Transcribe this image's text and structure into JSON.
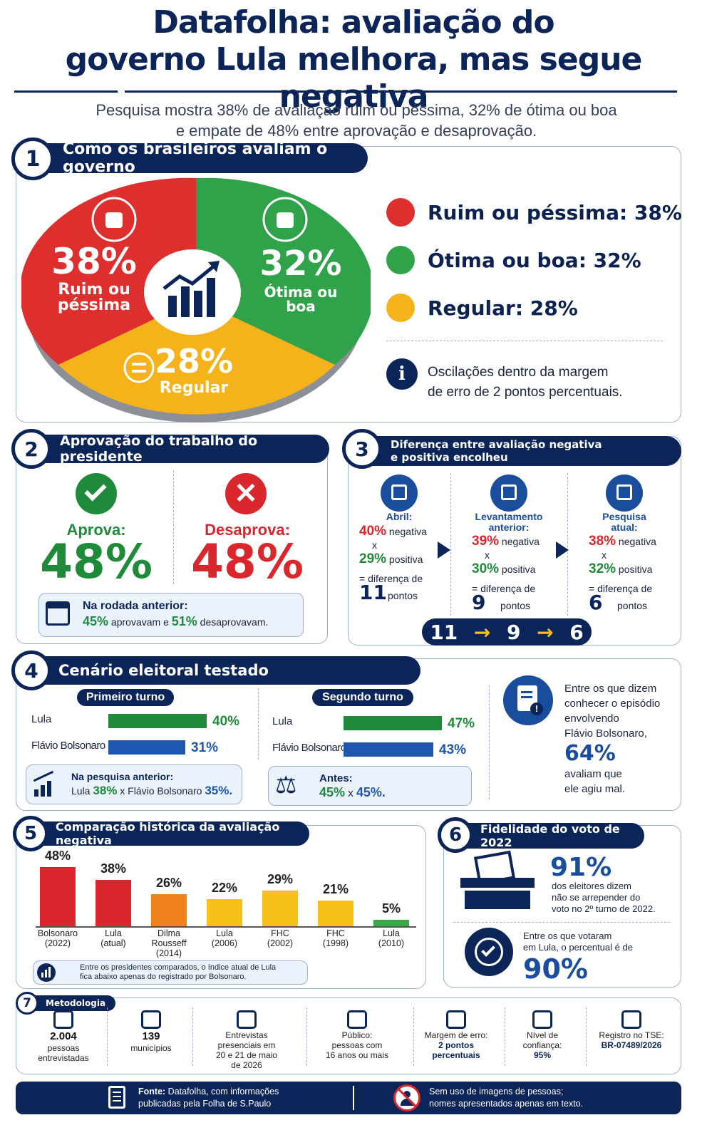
{
  "header": {
    "title_line1": "Datafolha: avaliação do",
    "title_line2": "governo Lula melhora, mas segue negativa",
    "subtitle_line1": "Pesquisa mostra 38% de avaliação ruim ou péssima, 32% de ótima ou boa",
    "subtitle_line2": "e empate de 48% entre aprovação e desaprovação."
  },
  "s1": {
    "num": "1",
    "title": "Como os brasileiros avaliam o governo",
    "pie": {
      "ruim_pct": "38%",
      "ruim_l1": "Ruim ou",
      "ruim_l2": "péssima",
      "otima_pct": "32%",
      "otima_l1": "Ótima ou",
      "otima_l2": "boa",
      "regular_pct": "28%",
      "regular_l1": "Regular"
    },
    "legend": [
      "Ruim ou péssima: 38%",
      "Ótima ou boa: 32%",
      "Regular: 28%"
    ],
    "info_l1": "Oscilações dentro da margem",
    "info_l2": "de erro de 2 pontos percentuais."
  },
  "s2": {
    "num": "2",
    "title": "Aprovação do trabalho do presidente",
    "aprova_label": "Aprova:",
    "aprova_value": "48%",
    "desaprova_label": "Desaprova:",
    "desaprova_value": "48%",
    "note_title": "Na rodada anterior:",
    "note_a": "45%",
    "note_b": " aprovavam e ",
    "note_c": "51%",
    "note_d": " desaprovavam."
  },
  "s3": {
    "num": "3",
    "title_l1": "Diferença entre avaliação negativa",
    "title_l2": "e positiva encolheu",
    "cols": [
      {
        "head_l1": "Abril:",
        "head_l2": "",
        "neg": "40%",
        "pos": "29%",
        "diff": "11"
      },
      {
        "head_l1": "Levantamento",
        "head_l2": "anterior:",
        "neg": "39%",
        "pos": "30%",
        "diff": "9"
      },
      {
        "head_l1": "Pesquisa",
        "head_l2": "atual:",
        "neg": "38%",
        "pos": "32%",
        "diff": "6"
      }
    ],
    "neg_word": "negativa",
    "x": "x",
    "pos_word": "positiva",
    "diff_word": "= diferença de",
    "pontos": "pontos",
    "trend": [
      "11",
      "9",
      "6"
    ],
    "arrow": "→"
  },
  "s4": {
    "num": "4",
    "title": "Cenário eleitoral testado",
    "t1": {
      "label": "Primeiro turno",
      "rows": [
        {
          "name": "Lula",
          "val": "40%"
        },
        {
          "name": "Flávio Bolsonaro",
          "val": "31%"
        }
      ],
      "note_title": "Na pesquisa anterior:",
      "note_a": "Lula ",
      "note_b": "38%",
      "note_c": " x ",
      "note_d": "Flávio Bolsonaro ",
      "note_e": "35%."
    },
    "t2": {
      "label": "Segundo turno",
      "rows": [
        {
          "name": "Lula",
          "val": "47%"
        },
        {
          "name": "Flávio Bolsonaro",
          "val": "43%"
        }
      ],
      "note_title": "Antes:",
      "note_a": "45%",
      "note_b": " x ",
      "note_c": "45%."
    },
    "side": {
      "l1": "Entre os que dizem",
      "l2": "conhecer o episódio",
      "l3": "envolvendo",
      "l4": "Flávio Bolsonaro,",
      "pct": "64%",
      "l5": "avaliam que",
      "l6": "ele agiu mal."
    }
  },
  "s5": {
    "num": "5",
    "title": "Comparação histórica da avaliação negativa",
    "note_l1": "Entre os presidentes comparados, o índice atual de Lula",
    "note_l2": "fica abaixo apenas do registrado por Bolsonaro."
  },
  "chart_data": {
    "type": "bar",
    "title": "Comparação histórica da avaliação negativa",
    "categories": [
      "Bolsonaro (2022)",
      "Lula (atual)",
      "Dilma Rousseff (2014)",
      "Lula (2006)",
      "FHC (2002)",
      "FHC (1998)",
      "Lula (2010)"
    ],
    "label_lines": [
      [
        "Bolsonaro",
        "(2022)"
      ],
      [
        "Lula",
        "(atual)"
      ],
      [
        "Dilma",
        "Rousseff",
        "(2014)"
      ],
      [
        "Lula",
        "(2006)"
      ],
      [
        "FHC",
        "(2002)"
      ],
      [
        "FHC",
        "(1998)"
      ],
      [
        "Lula",
        "(2010)"
      ]
    ],
    "values": [
      48,
      38,
      26,
      22,
      29,
      21,
      5
    ],
    "value_labels": [
      "48%",
      "38%",
      "26%",
      "22%",
      "29%",
      "21%",
      "5%"
    ],
    "colors": [
      "#d9272d",
      "#d9272d",
      "#f0821e",
      "#f6bf1a",
      "#f6bf1a",
      "#f6bf1a",
      "#3aaa48"
    ],
    "ylim": [
      0,
      50
    ]
  },
  "s6": {
    "num": "6",
    "title": "Fidelidade do voto de 2022",
    "pct1": "91%",
    "t1_l1": "dos eleitores dizem",
    "t1_l2": "não se arrepender do",
    "t1_l3": "voto no 2º turno de 2022.",
    "t2_l1": "Entre os que votaram",
    "t2_l2": "em Lula, o percentual é de",
    "pct2": "90%"
  },
  "s7": {
    "num": "7",
    "title": "Metodologia",
    "items": [
      {
        "lines": [
          "2.004",
          "pessoas",
          "entrevistadas"
        ]
      },
      {
        "lines": [
          "139",
          "municípios"
        ]
      },
      {
        "lines": [
          "Entrevistas",
          "presenciais em",
          "20 e 21 de maio",
          "de 2026"
        ]
      },
      {
        "lines": [
          "Público:",
          "pessoas com",
          "16 anos ou mais"
        ]
      },
      {
        "lines": [
          "Margem de erro:",
          "2 pontos",
          "percentuais"
        ]
      },
      {
        "lines": [
          "Nível de",
          "confiança:",
          "95%"
        ]
      },
      {
        "lines": [
          "Registro no TSE:",
          "BR-07489/2026"
        ]
      }
    ]
  },
  "footer": {
    "left_bold": "Fonte:",
    "left_l1": " Datafolha, com informações",
    "left_l2": "publicadas pela Folha de S.Paulo",
    "right_l1": "Sem uso de imagens de pessoas;",
    "right_l2": "nomes apresentados apenas em texto."
  },
  "colors": {
    "navy": "#0b2559",
    "red": "#d9272d",
    "green": "#1f8a3a",
    "yellow": "#f6bf1a",
    "blue": "#1e56b0"
  }
}
